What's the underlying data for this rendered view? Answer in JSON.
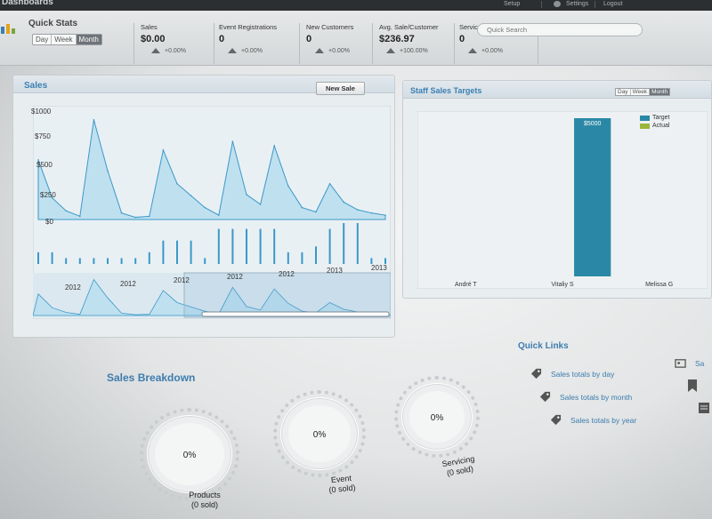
{
  "header": {
    "app_title": "Dashboards",
    "links": [
      "Setup",
      "Settings",
      "Logout"
    ],
    "search_placeholder": "Quick Search"
  },
  "quick_stats": {
    "title": "Quick Stats",
    "periods": [
      "Day",
      "Week",
      "Month"
    ],
    "active_period": "Month",
    "items": [
      {
        "label": "Sales",
        "value": "$0.00",
        "delta": "+0.00%"
      },
      {
        "label": "Event Registrations",
        "value": "0",
        "delta": "+0.00%"
      },
      {
        "label": "New Customers",
        "value": "0",
        "delta": "+0.00%"
      },
      {
        "label": "Avg. Sale/Customer",
        "value": "$236.97",
        "delta": "+100.00%"
      },
      {
        "label": "Services Completed",
        "value": "0",
        "delta": "+0.00%"
      }
    ]
  },
  "sales_panel": {
    "title": "Sales",
    "new_sale_button": "New Sale",
    "chart_data": {
      "type": "area",
      "title": "Sales",
      "y_tick_labels": [
        "$1000",
        "$750",
        "$500",
        "$250",
        "$0"
      ],
      "ylim": [
        0,
        1000
      ],
      "x_tick_labels": [
        "2012",
        "2012",
        "2012",
        "2012",
        "2012",
        "2013",
        "2013",
        "2013"
      ],
      "series": [
        {
          "values": [
            550,
            200,
            80,
            30,
            920,
            450,
            60,
            20,
            30,
            640,
            330,
            220,
            110,
            40,
            720,
            230,
            140,
            680,
            310,
            110,
            70,
            330,
            160,
            90,
            60,
            40
          ]
        }
      ],
      "volume_bars": [
        2,
        2,
        1,
        1,
        1,
        1,
        1,
        1,
        2,
        4,
        4,
        4,
        1,
        6,
        6,
        6,
        6,
        6,
        2,
        2,
        3,
        6,
        7,
        7,
        1,
        1
      ],
      "grid": false
    }
  },
  "staff_targets": {
    "title": "Staff Sales Targets",
    "periods": [
      "Day",
      "Week",
      "Month"
    ],
    "active_period": "Month",
    "bar_label": "$5000",
    "colors": {
      "target": "#2a88a6",
      "actual": "#9ab63a",
      "sales_fill": "#bfe0ef",
      "sales_line": "#3a98c8"
    },
    "chart_data": {
      "type": "bar",
      "categories": [
        "André T",
        "Vitaliy S",
        "Melissa G"
      ],
      "series": [
        {
          "name": "Target",
          "values": [
            0,
            5000,
            0
          ]
        },
        {
          "name": "Actual",
          "values": [
            0,
            0,
            0
          ]
        }
      ],
      "ylim": [
        0,
        5000
      ],
      "legend": "top-right"
    }
  },
  "breakdown": {
    "title": "Sales Breakdown",
    "gauges": [
      {
        "value": "0%",
        "label": "Products",
        "sub": "(0 sold)"
      },
      {
        "value": "0%",
        "label": "Event",
        "sub": "(0 sold)"
      },
      {
        "value": "0%",
        "label": "Servicing",
        "sub": "(0 sold)"
      }
    ]
  },
  "quick_links": {
    "title": "Quick Links",
    "items": [
      "Sales totals by day",
      "Sales totals by month",
      "Sales totals by year"
    ],
    "right_items": [
      "Sa"
    ]
  }
}
